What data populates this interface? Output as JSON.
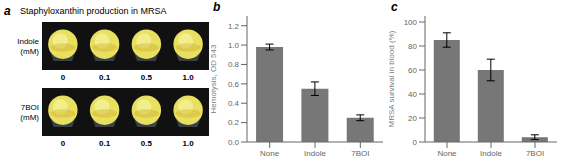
{
  "chart_data": [
    {
      "type": "image",
      "title": "Staphyloxanthin production in MRSA",
      "annotations": [
        "a",
        "Indole\n(mM)",
        "7BOI\n(mM)"
      ],
      "categories": [
        "0",
        "0.1",
        "0.5",
        "1.0"
      ],
      "color": "#111111"
    },
    {
      "type": "bar",
      "annotations": [
        "b"
      ],
      "categories": [
        "None",
        "Indole",
        "7BOI"
      ],
      "values": [
        0.98,
        0.55,
        0.25
      ],
      "errors": [
        0.03,
        0.07,
        0.03
      ],
      "ylabel": "Hemolysis, OD 543",
      "ylim": [
        0.0,
        1.3
      ],
      "yticks": [
        {
          "value": 0,
          "label": "0.0"
        },
        0.2,
        0.4,
        0.6,
        0.8,
        {
          "value": 1,
          "label": "1.0"
        },
        1.2
      ],
      "color": "#777777"
    },
    {
      "type": "bar",
      "annotations": [
        "c"
      ],
      "categories": [
        "None",
        "Indole",
        "7BOI"
      ],
      "values": [
        85,
        60,
        4
      ],
      "errors": [
        6,
        9,
        2
      ],
      "ylabel": "MRSA survival in blood (%)",
      "ylim": [
        0,
        105
      ],
      "yticks": [
        0,
        20,
        40,
        60,
        80,
        100
      ],
      "color": "#777777"
    }
  ]
}
